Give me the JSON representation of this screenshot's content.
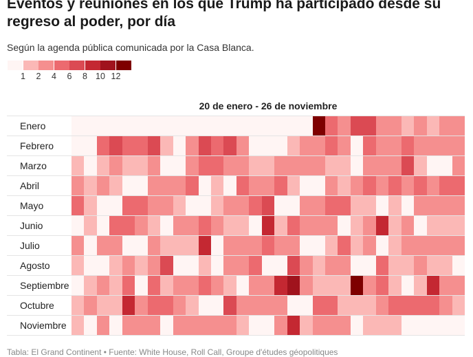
{
  "title": "Eventos y reuniones en los que Trump ha participado desde su regreso al poder, por día",
  "subtitle": "Según la agenda pública comunicada por la Casa Blanca.",
  "footer": "Tabla: El Grand Continent • Fuente: White House, Roll Call, Groupe d'études géopolitiques",
  "chart_data": {
    "type": "heatmap",
    "title": "20 de enero - 26 de noviembre",
    "legend": {
      "position": "top-left",
      "bins": [
        0,
        1,
        2,
        4,
        6,
        8,
        10,
        12
      ],
      "labels": [
        "1",
        "2",
        "4",
        "6",
        "8",
        "10",
        "12"
      ],
      "colors": [
        "#fff5f4",
        "#fbb8b6",
        "#f58f8f",
        "#ec6a6f",
        "#db4a53",
        "#c42832",
        "#a0131d",
        "#7e0000"
      ]
    },
    "rows": [
      "Enero",
      "Febrero",
      "Marzo",
      "Abril",
      "Mayo",
      "Junio",
      "Julio",
      "Agosto",
      "Septiembre",
      "Octubre",
      "Noviembre"
    ],
    "columns": "day of month 1-31",
    "values": [
      [
        0,
        0,
        0,
        0,
        0,
        0,
        0,
        0,
        0,
        0,
        0,
        0,
        0,
        0,
        0,
        0,
        0,
        0,
        0,
        12,
        4,
        2,
        6,
        6,
        2,
        2,
        1,
        2,
        1,
        2,
        2
      ],
      [
        0,
        0,
        4,
        6,
        4,
        4,
        6,
        1,
        0,
        2,
        6,
        4,
        6,
        2,
        0,
        0,
        0,
        1,
        2,
        2,
        4,
        2,
        0,
        4,
        2,
        2,
        4,
        2,
        2,
        2,
        2
      ],
      [
        1,
        0,
        1,
        2,
        1,
        1,
        2,
        0,
        0,
        2,
        4,
        4,
        2,
        2,
        1,
        1,
        2,
        2,
        2,
        2,
        1,
        1,
        0,
        2,
        2,
        2,
        6,
        1,
        0,
        0,
        2
      ],
      [
        2,
        1,
        2,
        1,
        0,
        0,
        2,
        2,
        2,
        4,
        0,
        1,
        0,
        4,
        2,
        2,
        4,
        1,
        0,
        0,
        2,
        1,
        2,
        4,
        2,
        4,
        2,
        4,
        2,
        4,
        4
      ],
      [
        4,
        1,
        0,
        0,
        4,
        4,
        2,
        2,
        1,
        0,
        0,
        1,
        2,
        2,
        4,
        6,
        0,
        0,
        2,
        2,
        4,
        4,
        1,
        1,
        0,
        1,
        0,
        2,
        2,
        2,
        2
      ],
      [
        0,
        1,
        0,
        4,
        4,
        2,
        1,
        0,
        2,
        2,
        4,
        2,
        1,
        1,
        0,
        8,
        1,
        4,
        2,
        2,
        2,
        0,
        1,
        2,
        8,
        1,
        2,
        0,
        1,
        1,
        1
      ],
      [
        2,
        0,
        2,
        2,
        0,
        0,
        2,
        1,
        1,
        1,
        8,
        0,
        2,
        2,
        2,
        4,
        2,
        2,
        0,
        0,
        1,
        4,
        1,
        2,
        0,
        1,
        2,
        2,
        2,
        2,
        2
      ],
      [
        1,
        0,
        0,
        1,
        2,
        1,
        2,
        6,
        0,
        0,
        1,
        0,
        2,
        2,
        4,
        0,
        0,
        6,
        2,
        1,
        2,
        2,
        0,
        0,
        4,
        1,
        1,
        2,
        1,
        1,
        0
      ],
      [
        0,
        1,
        2,
        1,
        4,
        0,
        4,
        1,
        2,
        2,
        4,
        2,
        1,
        0,
        2,
        2,
        8,
        10,
        2,
        1,
        1,
        1,
        12,
        2,
        4,
        1,
        0,
        1,
        8,
        2,
        2
      ],
      [
        1,
        2,
        1,
        1,
        8,
        2,
        4,
        4,
        2,
        1,
        0,
        0,
        6,
        2,
        2,
        2,
        2,
        0,
        0,
        4,
        4,
        1,
        1,
        1,
        2,
        4,
        4,
        4,
        4,
        2,
        1
      ],
      [
        1,
        0,
        2,
        0,
        2,
        2,
        2,
        0,
        2,
        2,
        2,
        2,
        2,
        1,
        0,
        0,
        2,
        8,
        1,
        2,
        2,
        2,
        0,
        1,
        1,
        1,
        0,
        0,
        0,
        0,
        0
      ]
    ],
    "grid": true
  }
}
